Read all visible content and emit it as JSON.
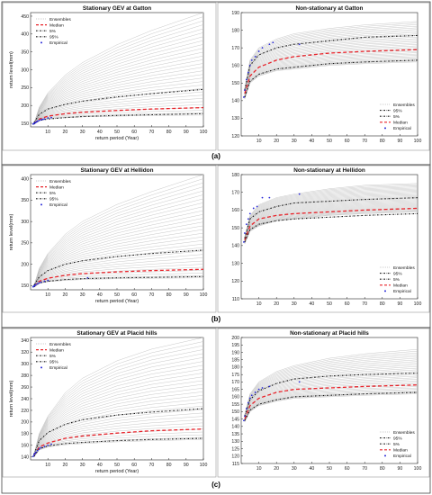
{
  "figure": {
    "panel_labels": [
      "(a)",
      "(b)",
      "(c)"
    ]
  },
  "chart_data": [
    {
      "panel": "a-left",
      "type": "line",
      "title": "Stationary GEV at Gatton",
      "xlabel": "return period (Year)",
      "ylabel": "return level(mm)",
      "xlim": [
        0,
        100
      ],
      "ylim": [
        140,
        460
      ],
      "xticks": [
        10,
        20,
        30,
        40,
        50,
        60,
        70,
        80,
        90,
        100
      ],
      "yticks": [
        150,
        200,
        250,
        300,
        350,
        400,
        450
      ],
      "grid": false,
      "legend_position": "top-left",
      "legend": [
        "Ensembles",
        "Median",
        "5%",
        "95%",
        "Empirical"
      ],
      "ensemble_range": {
        "x": [
          2,
          5,
          10,
          20,
          30,
          50,
          70,
          100
        ],
        "low": [
          147,
          160,
          164,
          166,
          168,
          170,
          172,
          173
        ],
        "high": [
          150,
          195,
          235,
          285,
          320,
          370,
          410,
          460
        ]
      },
      "series": [
        {
          "name": "Median",
          "style": "red-dashed",
          "x": [
            2,
            5,
            10,
            20,
            30,
            50,
            70,
            100
          ],
          "y": [
            150,
            162,
            170,
            177,
            181,
            186,
            190,
            194
          ]
        },
        {
          "name": "5%",
          "style": "black-dashdot",
          "x": [
            2,
            5,
            10,
            20,
            30,
            50,
            70,
            100
          ],
          "y": [
            148,
            158,
            162,
            166,
            169,
            172,
            174,
            177
          ]
        },
        {
          "name": "95%",
          "style": "black-dashdot",
          "x": [
            2,
            5,
            10,
            20,
            30,
            50,
            70,
            100
          ],
          "y": [
            152,
            175,
            190,
            203,
            212,
            224,
            233,
            245
          ]
        }
      ],
      "empirical": {
        "x": [
          1.5,
          2,
          2.5,
          3,
          3.5,
          4,
          5,
          6,
          7,
          8,
          10,
          12
        ],
        "y": [
          148,
          150,
          151,
          153,
          154,
          156,
          158,
          160,
          161,
          162,
          165,
          166
        ]
      }
    },
    {
      "panel": "a-right",
      "type": "line",
      "title": "Non-stationary at Gatton",
      "xlabel": "",
      "ylabel": "",
      "xlim": [
        0,
        100
      ],
      "ylim": [
        120,
        190
      ],
      "xticks": [
        10,
        20,
        30,
        40,
        50,
        60,
        70,
        80,
        90,
        100
      ],
      "yticks": [
        120,
        130,
        140,
        150,
        160,
        170,
        180,
        190
      ],
      "grid": false,
      "legend_position": "bottom-right",
      "legend": [
        "Ensembles",
        "95%",
        "5%",
        "Median",
        "Empirical"
      ],
      "ensemble_range": {
        "x": [
          2,
          5,
          10,
          20,
          30,
          50,
          70,
          100
        ],
        "low": [
          141,
          150,
          154,
          157,
          158,
          160,
          161,
          162
        ],
        "high": [
          147,
          163,
          170,
          175,
          178,
          181,
          183,
          185
        ]
      },
      "series": [
        {
          "name": "Median",
          "style": "red-dashed",
          "x": [
            2,
            5,
            10,
            20,
            30,
            50,
            70,
            100
          ],
          "y": [
            144,
            154,
            159,
            163,
            165,
            167,
            168,
            169
          ]
        },
        {
          "name": "5%",
          "style": "black-dashdot",
          "x": [
            2,
            5,
            10,
            20,
            30,
            50,
            70,
            100
          ],
          "y": [
            142,
            151,
            155,
            158,
            159,
            161,
            162,
            163
          ]
        },
        {
          "name": "95%",
          "style": "black-dashdot",
          "x": [
            2,
            5,
            10,
            20,
            30,
            50,
            70,
            100
          ],
          "y": [
            146,
            160,
            166,
            170,
            172,
            174,
            176,
            177
          ]
        }
      ],
      "empirical": {
        "x": [
          1.5,
          2,
          3,
          4,
          5,
          6,
          8,
          10,
          12,
          16,
          18,
          33
        ],
        "y": [
          142,
          146,
          152,
          156,
          160,
          163,
          165,
          168,
          170,
          172,
          173,
          172
        ]
      }
    },
    {
      "panel": "b-left",
      "type": "line",
      "title": "Stationary GEV at Hellidon",
      "xlabel": "return period (Year)",
      "ylabel": "return level(mm)",
      "xlim": [
        0,
        100
      ],
      "ylim": [
        140,
        410
      ],
      "xticks": [
        10,
        20,
        30,
        40,
        50,
        60,
        70,
        80,
        90,
        100
      ],
      "yticks": [
        150,
        200,
        250,
        300,
        350,
        400
      ],
      "grid": false,
      "legend_position": "top-left",
      "legend": [
        "Ensembles",
        "Median",
        "5%",
        "95%",
        "Empirical"
      ],
      "ensemble_range": {
        "x": [
          2,
          5,
          10,
          20,
          30,
          50,
          70,
          100
        ],
        "low": [
          146,
          155,
          159,
          162,
          164,
          166,
          167,
          168
        ],
        "high": [
          150,
          190,
          225,
          270,
          300,
          340,
          370,
          410
        ]
      },
      "series": [
        {
          "name": "Median",
          "style": "red-dashed",
          "x": [
            2,
            5,
            10,
            20,
            30,
            50,
            70,
            100
          ],
          "y": [
            149,
            160,
            167,
            174,
            178,
            182,
            185,
            188
          ]
        },
        {
          "name": "5%",
          "style": "black-dashdot",
          "x": [
            2,
            5,
            10,
            20,
            30,
            50,
            70,
            100
          ],
          "y": [
            147,
            156,
            160,
            164,
            166,
            168,
            169,
            171
          ]
        },
        {
          "name": "95%",
          "style": "black-dashdot",
          "x": [
            2,
            5,
            10,
            20,
            30,
            50,
            70,
            100
          ],
          "y": [
            151,
            170,
            185,
            200,
            208,
            218,
            225,
            233
          ]
        }
      ],
      "empirical": {
        "x": [
          1.5,
          2,
          2.5,
          3,
          4,
          5,
          6,
          8,
          10,
          33
        ],
        "y": [
          147,
          149,
          150,
          152,
          154,
          156,
          158,
          160,
          162,
          168
        ]
      }
    },
    {
      "panel": "b-right",
      "type": "line",
      "title": "Non-stationary at Hellidon",
      "xlabel": "",
      "ylabel": "",
      "xlim": [
        0,
        100
      ],
      "ylim": [
        110,
        180
      ],
      "xticks": [
        10,
        20,
        30,
        40,
        50,
        60,
        70,
        80,
        90,
        100
      ],
      "yticks": [
        110,
        120,
        130,
        140,
        150,
        160,
        170,
        180
      ],
      "grid": false,
      "legend_position": "bottom-right",
      "legend": [
        "Ensembles",
        "95%",
        "5%",
        "Median",
        "Empirical"
      ],
      "ensemble_range": {
        "x": [
          2,
          5,
          10,
          20,
          30,
          50,
          70,
          100
        ],
        "low": [
          141,
          148,
          151,
          154,
          155,
          157,
          158,
          159
        ],
        "high": [
          145,
          157,
          163,
          167,
          169,
          172,
          174,
          175
        ]
      },
      "series": [
        {
          "name": "Median",
          "style": "red-dashed",
          "x": [
            2,
            5,
            10,
            20,
            30,
            50,
            70,
            100
          ],
          "y": [
            143,
            151,
            155,
            157,
            158,
            159,
            160,
            161
          ]
        },
        {
          "name": "5%",
          "style": "black-dashdot",
          "x": [
            2,
            5,
            10,
            20,
            30,
            50,
            70,
            100
          ],
          "y": [
            142,
            149,
            152,
            154,
            155,
            156,
            157,
            158
          ]
        },
        {
          "name": "95%",
          "style": "black-dashdot",
          "x": [
            2,
            5,
            10,
            20,
            30,
            50,
            70,
            100
          ],
          "y": [
            144,
            155,
            159,
            162,
            164,
            165,
            166,
            167
          ]
        }
      ],
      "empirical": {
        "x": [
          1.5,
          2,
          3,
          4,
          5,
          7,
          9,
          12,
          16,
          33
        ],
        "y": [
          142,
          147,
          152,
          155,
          158,
          161,
          162,
          167,
          167,
          169
        ]
      }
    },
    {
      "panel": "c-left",
      "type": "line",
      "title": "Stationary GEV at Placid hills",
      "xlabel": "return period (Year)",
      "ylabel": "return level(mm)",
      "xlim": [
        0,
        100
      ],
      "ylim": [
        135,
        345
      ],
      "xticks": [
        10,
        20,
        30,
        40,
        50,
        60,
        70,
        80,
        90,
        100
      ],
      "yticks": [
        140,
        160,
        180,
        200,
        220,
        240,
        260,
        280,
        300,
        320,
        340
      ],
      "grid": false,
      "legend_position": "top-left",
      "legend": [
        "Ensembles",
        "Median",
        "5%",
        "95%",
        "Empirical"
      ],
      "ensemble_range": {
        "x": [
          2,
          5,
          10,
          20,
          30,
          50,
          70,
          100
        ],
        "low": [
          140,
          152,
          157,
          161,
          163,
          166,
          168,
          170
        ],
        "high": [
          145,
          180,
          210,
          250,
          275,
          305,
          325,
          345
        ]
      },
      "series": [
        {
          "name": "Median",
          "style": "red-dashed",
          "x": [
            2,
            5,
            10,
            20,
            30,
            50,
            70,
            100
          ],
          "y": [
            143,
            157,
            164,
            172,
            176,
            181,
            185,
            188
          ]
        },
        {
          "name": "5%",
          "style": "black-dashdot",
          "x": [
            2,
            5,
            10,
            20,
            30,
            50,
            70,
            100
          ],
          "y": [
            141,
            154,
            159,
            163,
            165,
            168,
            170,
            172
          ]
        },
        {
          "name": "95%",
          "style": "black-dashdot",
          "x": [
            2,
            5,
            10,
            20,
            30,
            50,
            70,
            100
          ],
          "y": [
            145,
            168,
            182,
            196,
            204,
            212,
            217,
            223
          ]
        }
      ],
      "empirical": {
        "x": [
          1.5,
          2,
          2.5,
          3,
          4,
          5,
          6,
          8,
          10,
          12
        ],
        "y": [
          141,
          144,
          146,
          148,
          151,
          154,
          156,
          158,
          160,
          162
        ]
      }
    },
    {
      "panel": "c-right",
      "type": "line",
      "title": "Non-stationary at Placid hills",
      "xlabel": "",
      "ylabel": "",
      "xlim": [
        0,
        100
      ],
      "ylim": [
        115,
        200
      ],
      "xticks": [
        10,
        20,
        30,
        40,
        50,
        60,
        70,
        80,
        90,
        100
      ],
      "yticks": [
        115,
        120,
        125,
        130,
        135,
        140,
        145,
        150,
        155,
        160,
        165,
        170,
        175,
        180,
        185,
        190,
        195,
        200
      ],
      "grid": false,
      "legend_position": "bottom-right",
      "legend": [
        "Ensembles",
        "95%",
        "5%",
        "Median",
        "Empirical"
      ],
      "ensemble_range": {
        "x": [
          2,
          5,
          10,
          20,
          30,
          50,
          70,
          100
        ],
        "low": [
          143,
          150,
          154,
          157,
          159,
          160,
          161,
          162
        ],
        "high": [
          148,
          162,
          170,
          177,
          181,
          186,
          189,
          192
        ]
      },
      "series": [
        {
          "name": "Median",
          "style": "red-dashed",
          "x": [
            2,
            5,
            10,
            20,
            30,
            50,
            70,
            100
          ],
          "y": [
            145,
            154,
            159,
            163,
            165,
            166,
            167,
            168
          ]
        },
        {
          "name": "5%",
          "style": "black-dashdot",
          "x": [
            2,
            5,
            10,
            20,
            30,
            50,
            70,
            100
          ],
          "y": [
            144,
            151,
            155,
            158,
            160,
            161,
            162,
            163
          ]
        },
        {
          "name": "95%",
          "style": "black-dashdot",
          "x": [
            2,
            5,
            10,
            20,
            30,
            50,
            70,
            100
          ],
          "y": [
            147,
            158,
            164,
            169,
            172,
            174,
            175,
            176
          ]
        }
      ],
      "empirical": {
        "x": [
          1.5,
          2,
          3,
          4,
          5,
          6,
          8,
          10,
          12,
          16,
          33
        ],
        "y": [
          144,
          147,
          152,
          156,
          159,
          161,
          163,
          165,
          166,
          167,
          170
        ]
      }
    }
  ]
}
